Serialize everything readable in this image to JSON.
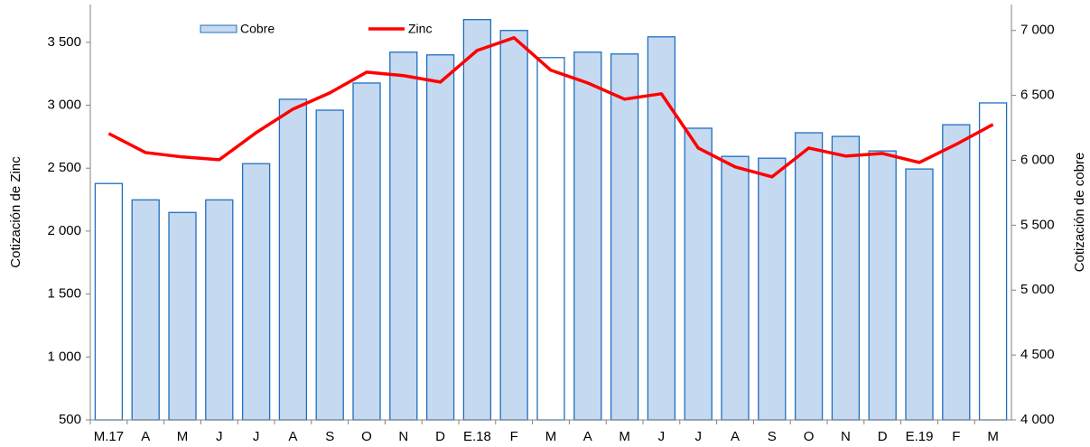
{
  "chart_data": {
    "type": "bar-line",
    "y_label": "Cotización de Zinc",
    "y2_label": "Cotización de cobre",
    "categories": [
      "M.17",
      "A",
      "M",
      "J",
      "J",
      "A",
      "S",
      "O",
      "N",
      "D",
      "E.18",
      "F",
      "M",
      "A",
      "M",
      "J",
      "J",
      "A",
      "S",
      "O",
      "N",
      "D",
      "E.19",
      "F",
      "M"
    ],
    "ylim": [
      500,
      3800
    ],
    "yticks": [
      500,
      {
        "value": 1000,
        "label": "1 000"
      },
      {
        "value": 1500,
        "label": "1 500"
      },
      {
        "value": 2000,
        "label": "2 000"
      },
      {
        "value": 2500,
        "label": "2 500"
      },
      {
        "value": 3000,
        "label": "3 000"
      },
      {
        "value": 3500,
        "label": "3 500"
      }
    ],
    "y2lim": [
      4000,
      7200
    ],
    "y2ticks": [
      {
        "value": 4000,
        "label": "4 000"
      },
      {
        "value": 4500,
        "label": "4 500"
      },
      {
        "value": 5000,
        "label": "5 000"
      },
      {
        "value": 5500,
        "label": "5 500"
      },
      {
        "value": 6000,
        "label": "6 000"
      },
      {
        "value": 6500,
        "label": "6 500"
      },
      {
        "value": 7000,
        "label": "7 000"
      }
    ],
    "series": [
      {
        "name": "Cobre",
        "type": "bar",
        "axis": "y2",
        "color": "#c5d9f1",
        "edge": "#1f6fc0",
        "point_colors": [
          "#ffffff",
          "#c5d9f1",
          "#c5d9f1",
          "#c5d9f1",
          "#c5d9f1",
          "#c5d9f1",
          "#c5d9f1",
          "#c5d9f1",
          "#c5d9f1",
          "#c5d9f1",
          "#c5d9f1",
          "#c5d9f1",
          "#ffffff",
          "#c5d9f1",
          "#c5d9f1",
          "#c5d9f1",
          "#c5d9f1",
          "#c5d9f1",
          "#c5d9f1",
          "#c5d9f1",
          "#c5d9f1",
          "#c5d9f1",
          "#c5d9f1",
          "#c5d9f1",
          "#ffffff"
        ],
        "values": [
          5821,
          5695,
          5598,
          5695,
          5974,
          6470,
          6386,
          6595,
          6833,
          6812,
          7084,
          7000,
          6791,
          6833,
          6819,
          6951,
          6247,
          6030,
          6016,
          6212,
          6184,
          6072,
          5933,
          6274,
          6442
        ]
      },
      {
        "name": "Zinc",
        "type": "line",
        "axis": "y",
        "color": "#ff0000",
        "values": [
          2775,
          2624,
          2589,
          2567,
          2782,
          2969,
          3098,
          3263,
          3235,
          3184,
          3435,
          3536,
          3278,
          3177,
          3048,
          3091,
          2660,
          2510,
          2431,
          2660,
          2596,
          2617,
          2545,
          2689,
          2847
        ]
      }
    ]
  }
}
